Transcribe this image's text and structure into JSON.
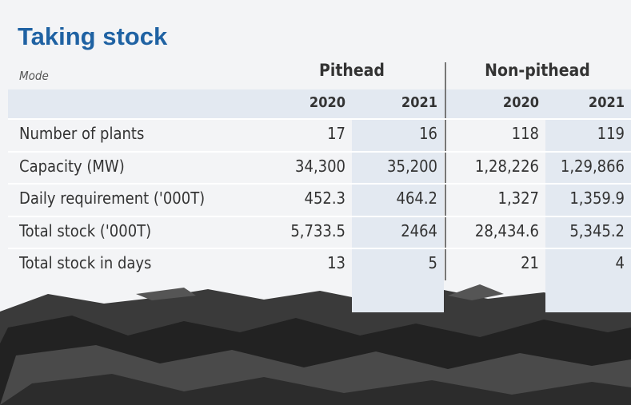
{
  "header": {
    "title": "Taking stock",
    "mode_label": "Mode"
  },
  "table": {
    "groups": [
      "Pithead",
      "Non-pithead"
    ],
    "years": [
      "2020",
      "2021",
      "2020",
      "2021"
    ],
    "rows": [
      [
        "Number of plants",
        "17",
        "16",
        "118",
        "119"
      ],
      [
        "Capacity (MW)",
        "34,300",
        "35,200",
        "1,28,226",
        "1,29,866"
      ],
      [
        "Daily requirement ('000T)",
        "452.3",
        "464.2",
        "1,327",
        "1,359.9"
      ],
      [
        "Total stock ('000T)",
        "5,733.5",
        "2464",
        "28,434.6",
        "5,345.2"
      ],
      [
        "Total stock in days",
        "13",
        "5",
        "21",
        "4"
      ]
    ]
  }
}
